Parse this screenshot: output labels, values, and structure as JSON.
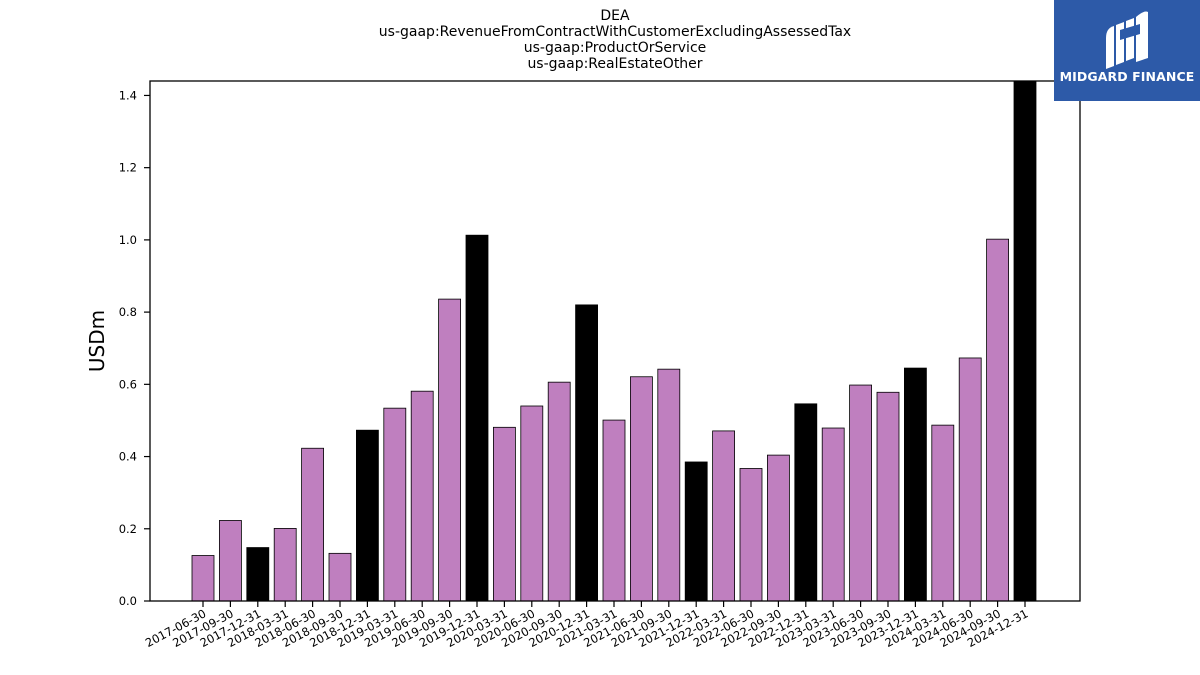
{
  "chart_data": {
    "type": "bar",
    "title_lines": [
      "DEA",
      "us-gaap:RevenueFromContractWithCustomerExcludingAssessedTax",
      "us-gaap:ProductOrService",
      "us-gaap:RealEstateOther"
    ],
    "ylabel": "USDm",
    "xlabel": "",
    "ylim": [
      0,
      1.44
    ],
    "yticks": [
      0.0,
      0.2,
      0.4,
      0.6,
      0.8,
      1.0,
      1.2,
      1.4
    ],
    "ytick_labels": [
      "0.0",
      "0.2",
      "0.4",
      "0.6",
      "0.8",
      "1.0",
      "1.2",
      "1.4"
    ],
    "grid": false,
    "colors": {
      "quarter": "#bf7fbf",
      "year_end": "#000000",
      "edge": "#000000"
    },
    "categories": [
      "2017-06-30",
      "2017-09-30",
      "2017-12-31",
      "2018-03-31",
      "2018-06-30",
      "2018-09-30",
      "2018-12-31",
      "2019-03-31",
      "2019-06-30",
      "2019-09-30",
      "2019-12-31",
      "2020-03-31",
      "2020-06-30",
      "2020-09-30",
      "2020-12-31",
      "2021-03-31",
      "2021-06-30",
      "2021-09-30",
      "2021-12-31",
      "2022-03-31",
      "2022-06-30",
      "2022-09-30",
      "2022-12-31",
      "2023-03-31",
      "2023-06-30",
      "2023-09-30",
      "2023-12-31",
      "2024-03-31",
      "2024-06-30",
      "2024-09-30",
      "2024-12-31"
    ],
    "values": [
      0.126,
      0.223,
      0.148,
      0.201,
      0.423,
      0.132,
      0.473,
      0.534,
      0.581,
      0.836,
      1.013,
      0.481,
      0.54,
      0.606,
      0.82,
      0.501,
      0.621,
      0.642,
      0.385,
      0.471,
      0.367,
      0.404,
      0.546,
      0.479,
      0.598,
      0.578,
      0.645,
      0.487,
      0.673,
      1.002,
      1.44
    ],
    "year_end": [
      false,
      false,
      true,
      false,
      false,
      false,
      true,
      false,
      false,
      false,
      true,
      false,
      false,
      false,
      true,
      false,
      false,
      false,
      true,
      false,
      false,
      false,
      true,
      false,
      false,
      false,
      true,
      false,
      false,
      false,
      true
    ]
  },
  "logo": {
    "text": "MIDGARD FINANCE",
    "icon": "midgard-logo-icon",
    "background": "#2d5aa8"
  }
}
